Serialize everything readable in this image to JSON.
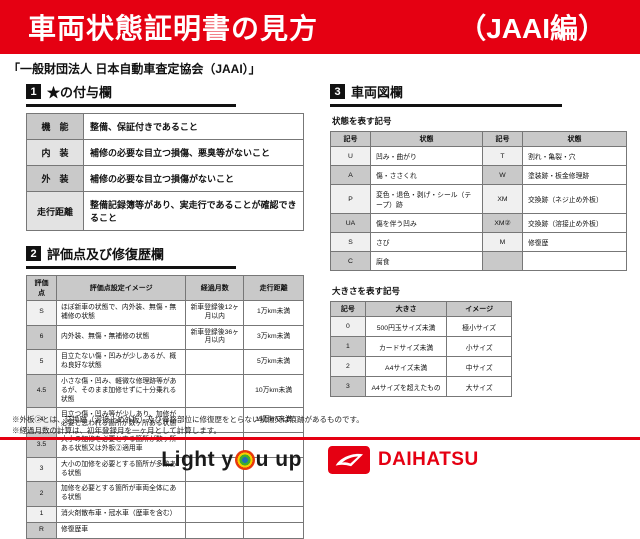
{
  "banner": {
    "title": "車両状態証明書の見方",
    "edition": "（JAAI編）",
    "bg_color": "#e50012"
  },
  "subtitle": "「一般財団法人 日本自動車査定協会（JAAI）」",
  "sections": {
    "star": {
      "num": "1",
      "title": "★の付与欄",
      "rows": [
        [
          "機　能",
          "整備、保証付きであること"
        ],
        [
          "内　装",
          "補修の必要な目立つ損傷、悪臭等がないこと"
        ],
        [
          "外　装",
          "補修の必要な目立つ損傷がないこと"
        ],
        [
          "走行距離",
          "整備記録簿等があり、実走行であることが確認できること"
        ]
      ]
    },
    "grade": {
      "num": "2",
      "title": "評価点及び修復歴欄",
      "headers": [
        "評価点",
        "評価点設定イメージ",
        "経過月数",
        "走行距離"
      ],
      "rows": [
        [
          "S",
          "ほぼ新車の状態で、内外装、無傷・無補修の状態",
          "新車登録後12ヶ月以内",
          "1万km未満"
        ],
        [
          "6",
          "内外装、無傷・無補修の状態",
          "新車登録後36ヶ月以内",
          "3万km未満"
        ],
        [
          "5",
          "目立たない傷・凹みが少しあるが、概ね良好な状態",
          "",
          "5万km未満"
        ],
        [
          "4.5",
          "小さな傷・凹み、軽微な修理跡等があるが、そのまま加修せずに十分乗れる状態",
          "",
          "10万km未満"
        ],
        [
          "4",
          "目立つ傷・凹み等が少しあり、加修が必要と思われる箇所が数ヶ所ある状態",
          "",
          "15万km未満"
        ],
        [
          "3.5",
          "大小の加修を必要とする箇所が数ヶ所ある状態又は外板②適用車",
          "",
          ""
        ],
        [
          "3",
          "大小の加修を必要とする箇所が多数ある状態",
          "",
          ""
        ],
        [
          "2",
          "加修を必要とする箇所が車両全体にある状態",
          "",
          ""
        ],
        [
          "1",
          "消火剤散布車・冠水車（歴車を含む）",
          "",
          ""
        ],
        [
          "R",
          "修復歴車",
          "",
          ""
        ]
      ]
    },
    "diagram": {
      "num": "3",
      "title": "車両図欄",
      "state_heading": "状態を表す記号",
      "state_headers": [
        "記号",
        "状態",
        "記号",
        "状態"
      ],
      "state_rows": [
        [
          "U",
          "凹み・曲がり",
          "T",
          "割れ・亀裂・穴"
        ],
        [
          "A",
          "傷・ささくれ",
          "W",
          "塗装跡・板金修理跡"
        ],
        [
          "P",
          "変色・退色・剥げ・シール（テープ）跡",
          "XM",
          "交換跡（ネジ止め外板）"
        ],
        [
          "UA",
          "傷を伴う凹み",
          "XM②",
          "交換跡（溶接止め外板）"
        ],
        [
          "S",
          "さび",
          "M",
          "修復歴"
        ],
        [
          "C",
          "腐食",
          "",
          ""
        ]
      ],
      "size_heading": "大きさを表す記号",
      "size_headers": [
        "記号",
        "大きさ",
        "イメージ"
      ],
      "size_rows": [
        [
          "0",
          "500円玉サイズ未満",
          "極小サイズ"
        ],
        [
          "1",
          "カードサイズ未満",
          "小サイズ"
        ],
        [
          "2",
          "A4サイズ未満",
          "中サイズ"
        ],
        [
          "3",
          "A4サイズを超えたもの",
          "大サイズ"
        ]
      ]
    }
  },
  "notes": [
    "※外板②とは、交換跡（溶接止め外板）及び骨格部位に修復歴をとらない損傷又は痕跡があるものです。",
    "※経過月数の計算は、初年登録月を一ヶ月として計算します。"
  ],
  "footer": {
    "slogan": "Light you up",
    "slogan_pre": "Light y",
    "slogan_post": "u up",
    "brand": "DAIHATSU",
    "brand_color": "#e50012",
    "icons": [
      "target-icon",
      "daihatsu-logo"
    ]
  }
}
